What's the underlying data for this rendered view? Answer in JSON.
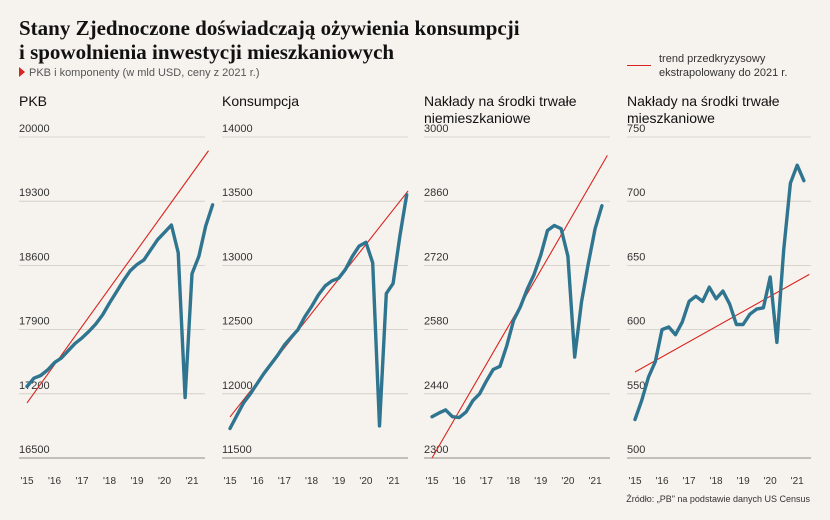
{
  "title": {
    "line1": "Stany Zjednoczone doświadczają ożywienia konsumpcji",
    "line2": "i spowolnienia inwestycji mieszkaniowych"
  },
  "subtitle": "PKB i komponenty (w mld USD, ceny z 2021 r.)",
  "legend": {
    "label": "trend przedkryzysowy ekstrapolowany do 2021 r.",
    "color": "#d9241f"
  },
  "source": "Źródło: „PB\" na podstawie danych US Census",
  "colors": {
    "series": "#2f7590",
    "trend": "#d9241f",
    "grid": "#cfcac2"
  },
  "chart_data": [
    {
      "type": "line",
      "title": "PKB",
      "x_ticks": [
        "'15",
        "'16",
        "'17",
        "'18",
        "'19",
        "'20",
        "'21"
      ],
      "y_ticks": [
        16500,
        17200,
        17900,
        18600,
        19300,
        20000
      ],
      "ylim": [
        16500,
        20000
      ],
      "xlim": [
        2015,
        2021.4
      ],
      "series": [
        {
          "values": [
            [
              2015.0,
              17280
            ],
            [
              2015.25,
              17370
            ],
            [
              2015.5,
              17400
            ],
            [
              2015.75,
              17460
            ],
            [
              2016.0,
              17540
            ],
            [
              2016.25,
              17590
            ],
            [
              2016.5,
              17670
            ],
            [
              2016.75,
              17750
            ],
            [
              2017.0,
              17810
            ],
            [
              2017.25,
              17880
            ],
            [
              2017.5,
              17960
            ],
            [
              2017.75,
              18060
            ],
            [
              2018.0,
              18190
            ],
            [
              2018.25,
              18310
            ],
            [
              2018.5,
              18430
            ],
            [
              2018.75,
              18540
            ],
            [
              2019.0,
              18610
            ],
            [
              2019.25,
              18660
            ],
            [
              2019.5,
              18770
            ],
            [
              2019.75,
              18880
            ],
            [
              2020.0,
              18960
            ],
            [
              2020.25,
              19040
            ],
            [
              2020.5,
              18740
            ],
            [
              2020.75,
              17160
            ],
            [
              2021.0,
              18510
            ],
            [
              2021.25,
              18700
            ],
            [
              2021.5,
              19030
            ],
            [
              2021.75,
              19260
            ]
          ]
        }
      ],
      "trend": [
        [
          2015.0,
          17100
        ],
        [
          2021.6,
          19850
        ]
      ]
    },
    {
      "type": "line",
      "title": "Konsumpcja",
      "x_ticks": [
        "'15",
        "'16",
        "'17",
        "'18",
        "'19",
        "'20",
        "'21"
      ],
      "y_ticks": [
        11500,
        12000,
        12500,
        13000,
        13500,
        14000
      ],
      "ylim": [
        11500,
        14000
      ],
      "xlim": [
        2015,
        2021.4
      ],
      "series": [
        {
          "values": [
            [
              2015.0,
              11730
            ],
            [
              2015.25,
              11830
            ],
            [
              2015.5,
              11930
            ],
            [
              2015.75,
              12000
            ],
            [
              2016.0,
              12080
            ],
            [
              2016.25,
              12160
            ],
            [
              2016.5,
              12230
            ],
            [
              2016.75,
              12300
            ],
            [
              2017.0,
              12380
            ],
            [
              2017.25,
              12440
            ],
            [
              2017.5,
              12500
            ],
            [
              2017.75,
              12600
            ],
            [
              2018.0,
              12680
            ],
            [
              2018.25,
              12770
            ],
            [
              2018.5,
              12840
            ],
            [
              2018.75,
              12880
            ],
            [
              2019.0,
              12900
            ],
            [
              2019.25,
              12970
            ],
            [
              2019.5,
              13070
            ],
            [
              2019.75,
              13150
            ],
            [
              2020.0,
              13180
            ],
            [
              2020.25,
              13020
            ],
            [
              2020.5,
              11750
            ],
            [
              2020.75,
              12780
            ],
            [
              2021.0,
              12860
            ],
            [
              2021.25,
              13230
            ],
            [
              2021.5,
              13550
            ]
          ]
        }
      ],
      "trend": [
        [
          2015.0,
          11820
        ],
        [
          2021.55,
          13580
        ]
      ]
    },
    {
      "type": "line",
      "title": "Nakłady na środki trwałe niemieszkaniowe",
      "x_ticks": [
        "'15",
        "'16",
        "'17",
        "'18",
        "'19",
        "'20",
        "'21"
      ],
      "y_ticks": [
        2300,
        2440,
        2580,
        2720,
        2860,
        3000
      ],
      "ylim": [
        2300,
        3000
      ],
      "xlim": [
        2015,
        2021.4
      ],
      "series": [
        {
          "values": [
            [
              2015.0,
              2390
            ],
            [
              2015.25,
              2398
            ],
            [
              2015.5,
              2405
            ],
            [
              2015.75,
              2390
            ],
            [
              2016.0,
              2388
            ],
            [
              2016.25,
              2400
            ],
            [
              2016.5,
              2425
            ],
            [
              2016.75,
              2440
            ],
            [
              2017.0,
              2468
            ],
            [
              2017.25,
              2493
            ],
            [
              2017.5,
              2500
            ],
            [
              2017.75,
              2545
            ],
            [
              2018.0,
              2600
            ],
            [
              2018.25,
              2630
            ],
            [
              2018.5,
              2668
            ],
            [
              2018.75,
              2700
            ],
            [
              2019.0,
              2742
            ],
            [
              2019.25,
              2796
            ],
            [
              2019.5,
              2807
            ],
            [
              2019.75,
              2800
            ],
            [
              2020.0,
              2740
            ],
            [
              2020.25,
              2520
            ],
            [
              2020.5,
              2640
            ],
            [
              2020.75,
              2724
            ],
            [
              2021.0,
              2800
            ],
            [
              2021.25,
              2850
            ]
          ]
        }
      ],
      "trend": [
        [
          2015.0,
          2300
        ],
        [
          2021.45,
          2960
        ]
      ]
    },
    {
      "type": "line",
      "title": "Nakłady na środki trwałe mieszkaniowe",
      "x_ticks": [
        "'15",
        "'16",
        "'17",
        "'18",
        "'19",
        "'20",
        "'21"
      ],
      "y_ticks": [
        500,
        550,
        600,
        650,
        700,
        750
      ],
      "ylim": [
        500,
        750
      ],
      "xlim": [
        2015,
        2021.4
      ],
      "series": [
        {
          "values": [
            [
              2015.0,
              530
            ],
            [
              2015.25,
              545
            ],
            [
              2015.5,
              563
            ],
            [
              2015.75,
              575
            ],
            [
              2016.0,
              600
            ],
            [
              2016.25,
              602
            ],
            [
              2016.5,
              596
            ],
            [
              2016.75,
              606
            ],
            [
              2017.0,
              622
            ],
            [
              2017.25,
              626
            ],
            [
              2017.5,
              622
            ],
            [
              2017.75,
              633
            ],
            [
              2018.0,
              624
            ],
            [
              2018.25,
              630
            ],
            [
              2018.5,
              620
            ],
            [
              2018.75,
              604
            ],
            [
              2019.0,
              604
            ],
            [
              2019.25,
              612
            ],
            [
              2019.5,
              616
            ],
            [
              2019.75,
              617
            ],
            [
              2020.0,
              641
            ],
            [
              2020.25,
              590
            ],
            [
              2020.5,
              662
            ],
            [
              2020.75,
              714
            ],
            [
              2021.0,
              728
            ],
            [
              2021.25,
              716
            ]
          ]
        }
      ],
      "trend": [
        [
          2015.0,
          567
        ],
        [
          2021.45,
          643
        ]
      ]
    }
  ]
}
